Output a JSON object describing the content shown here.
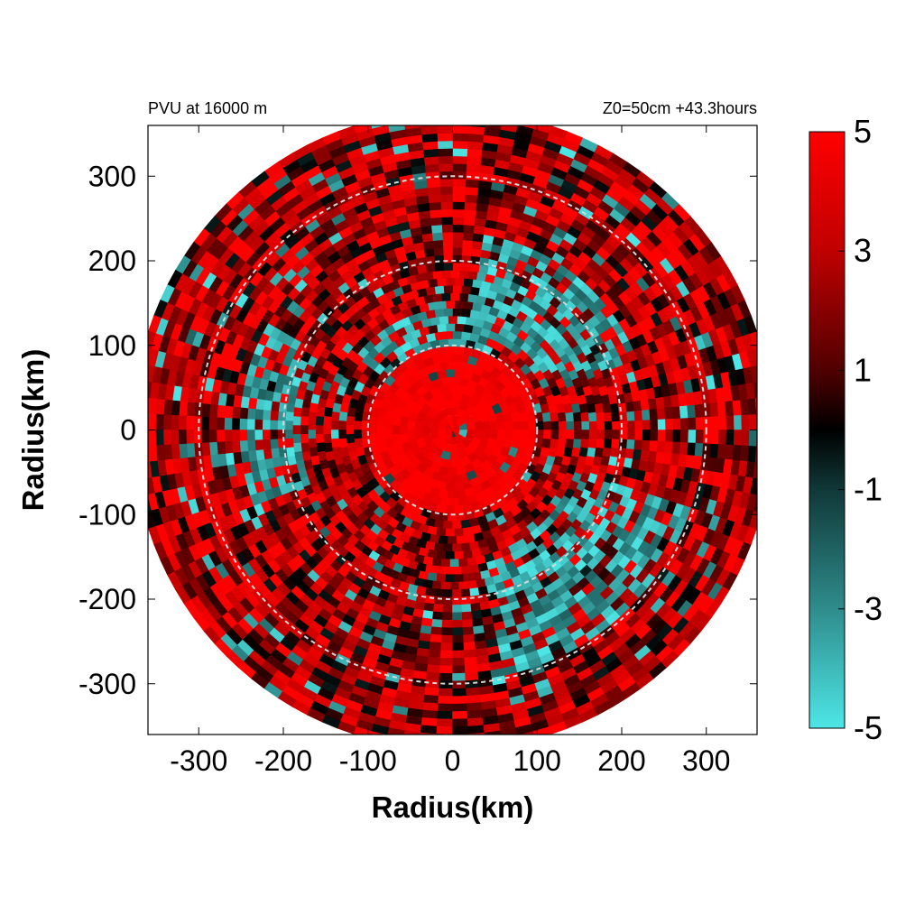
{
  "chart_data": {
    "type": "heatmap",
    "projection": "polar-disc",
    "title_left": "PVU at 16000 m",
    "title_right": "Z0=50cm  +43.3hours",
    "xlabel": "Radius(km)",
    "ylabel": "Radius(km)",
    "xlim": [
      -360,
      360
    ],
    "ylim": [
      -360,
      360
    ],
    "x_ticks": [
      -300,
      -200,
      -100,
      0,
      100,
      200,
      300
    ],
    "y_ticks": [
      300,
      200,
      100,
      0,
      -100,
      -200,
      -300
    ],
    "x_tick_labels": [
      "-300",
      "-200",
      "-100",
      "0",
      "100",
      "200",
      "300"
    ],
    "y_tick_labels": [
      "300",
      "200",
      "100",
      "0",
      "-100",
      "-200",
      "-300"
    ],
    "reference_circles_km": [
      100,
      200,
      300
    ],
    "field": {
      "name": "PVU",
      "domain_radius_km": 370,
      "core_positive_radius_km": 95,
      "negative_regions": [
        {
          "r_min": 60,
          "r_max": 140,
          "theta_min_deg": 60,
          "theta_max_deg": 140
        },
        {
          "r_min": 120,
          "r_max": 230,
          "theta_min_deg": 20,
          "theta_max_deg": 80
        },
        {
          "r_min": 150,
          "r_max": 300,
          "theta_min_deg": -80,
          "theta_max_deg": -20
        },
        {
          "r_min": 180,
          "r_max": 250,
          "theta_min_deg": 150,
          "theta_max_deg": 200
        }
      ]
    },
    "colorbar": {
      "min": -5,
      "max": 5,
      "tick_labels": [
        "5",
        "3",
        "1",
        "-1",
        "-3",
        "-5"
      ],
      "stops": [
        {
          "value": 5,
          "color": "#ff0000"
        },
        {
          "value": 3,
          "color": "#c00000"
        },
        {
          "value": 1,
          "color": "#500000"
        },
        {
          "value": 0,
          "color": "#000000"
        },
        {
          "value": -1,
          "color": "#103838"
        },
        {
          "value": -3,
          "color": "#2f8c8c"
        },
        {
          "value": -5,
          "color": "#4ee6e6"
        }
      ]
    },
    "colors": {
      "reference_circle": "#d8d8d8",
      "frame": "#000000"
    }
  }
}
